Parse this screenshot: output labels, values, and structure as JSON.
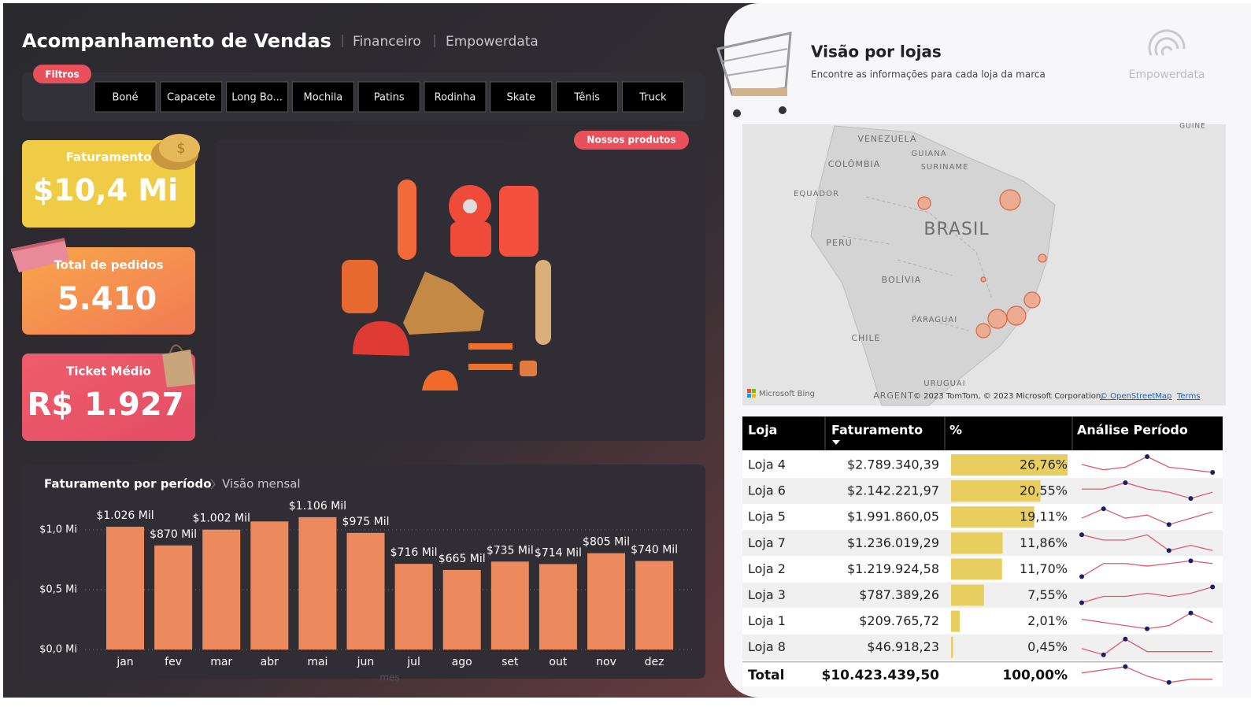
{
  "header": {
    "title": "Acompanhamento de Vendas",
    "tabs": [
      "Financeiro",
      "Empowerdata"
    ]
  },
  "filters": {
    "label": "Filtros",
    "items": [
      "Boné",
      "Capacete",
      "Long Bo...",
      "Mochila",
      "Patins",
      "Rodinha",
      "Skate",
      "Tênis",
      "Truck"
    ]
  },
  "kpis": [
    {
      "label": "Faturamento",
      "value": "$10,4 Mi"
    },
    {
      "label": "Total de pedidos",
      "value": "5.410"
    },
    {
      "label": "Ticket Médio",
      "value": "R$ 1.927"
    }
  ],
  "products": {
    "label": "Nossos produtos"
  },
  "chart_data": {
    "type": "bar",
    "title": "Faturamento por período",
    "subtitle": "Visão mensal",
    "x_label": "mes",
    "color": "#ec8a5e",
    "categories": [
      "jan",
      "fev",
      "mar",
      "abr",
      "mai",
      "jun",
      "jul",
      "ago",
      "set",
      "out",
      "nov",
      "dez"
    ],
    "values": [
      1026000,
      870000,
      1002000,
      1070000,
      1106000,
      975000,
      716000,
      665000,
      735000,
      714000,
      805000,
      740000
    ],
    "value_labels": [
      "$1.026 Mil",
      "$870 Mil",
      "$1.002 Mil",
      null,
      "$1.106 Mil",
      "$975 Mil",
      "$716 Mil",
      "$665 Mil",
      "$735 Mil",
      "$714 Mil",
      "$805 Mil",
      "$740 Mil"
    ],
    "ylim": [
      0,
      1200000
    ],
    "yticks": [
      {
        "value": 0,
        "label": "$0,0 Mi"
      },
      {
        "value": 500000,
        "label": "$0,5 Mi"
      },
      {
        "value": 1000000,
        "label": "$1,0 Mi"
      }
    ],
    "grid": true
  },
  "stores": {
    "title": "Visão por lojas",
    "subtitle": "Encontre as informações para cada loja da marca",
    "brand": "Empowerdata"
  },
  "map": {
    "labels": [
      "VENEZUELA",
      "GUIANA",
      "SURINAME",
      "COLÔMBIA",
      "EQUADOR",
      "BRASIL",
      "PERU",
      "BOLÍVIA",
      "PARAGUAI",
      "CHILE",
      "URUGUAI",
      "ARGENT",
      "GUINE"
    ],
    "provider": "Microsoft Bing",
    "attribution": "© 2023 TomTom, © 2023 Microsoft Corporation,",
    "links": [
      "© OpenStreetMap",
      "Terms"
    ]
  },
  "table": {
    "columns": [
      "Loja",
      "Faturamento",
      "%",
      "Análise Período"
    ],
    "rows": [
      {
        "store": "Loja 4",
        "revenue": "$2.789.340,39",
        "pct": 26.76,
        "pct_label": "26,76%",
        "trend": [
          6,
          4,
          5,
          9,
          5,
          4,
          3
        ]
      },
      {
        "store": "Loja 6",
        "revenue": "$2.142.221,97",
        "pct": 20.55,
        "pct_label": "20,55%",
        "trend": [
          6,
          6,
          8,
          6,
          5,
          3,
          5
        ]
      },
      {
        "store": "Loja 5",
        "revenue": "$1.991.860,05",
        "pct": 19.11,
        "pct_label": "19,11%",
        "trend": [
          5,
          8,
          5,
          6,
          3,
          5,
          7
        ]
      },
      {
        "store": "Loja 7",
        "revenue": "$1.236.019,29",
        "pct": 11.86,
        "pct_label": "11,86%",
        "trend": [
          7,
          6,
          6,
          7,
          4,
          5,
          4
        ]
      },
      {
        "store": "Loja 2",
        "revenue": "$1.219.924,58",
        "pct": 11.7,
        "pct_label": "11,70%",
        "trend": [
          2,
          7,
          7,
          6,
          7,
          8,
          7
        ]
      },
      {
        "store": "Loja 3",
        "revenue": "$787.389,26",
        "pct": 7.55,
        "pct_label": "7,55%",
        "trend": [
          3,
          5,
          5,
          6,
          5,
          6,
          8
        ]
      },
      {
        "store": "Loja 1",
        "revenue": "$209.765,72",
        "pct": 2.01,
        "pct_label": "2,01%",
        "trend": [
          6,
          5,
          4,
          3,
          4,
          8,
          5
        ]
      },
      {
        "store": "Loja 8",
        "revenue": "$46.918,23",
        "pct": 0.45,
        "pct_label": "0,45%",
        "trend": [
          5,
          3,
          8,
          4,
          4,
          4,
          4
        ]
      }
    ],
    "total": {
      "store": "Total",
      "revenue": "$10.423.439,50",
      "pct_label": "100,00%",
      "trend": [
        6,
        7,
        8,
        5,
        3,
        4,
        4
      ]
    }
  }
}
